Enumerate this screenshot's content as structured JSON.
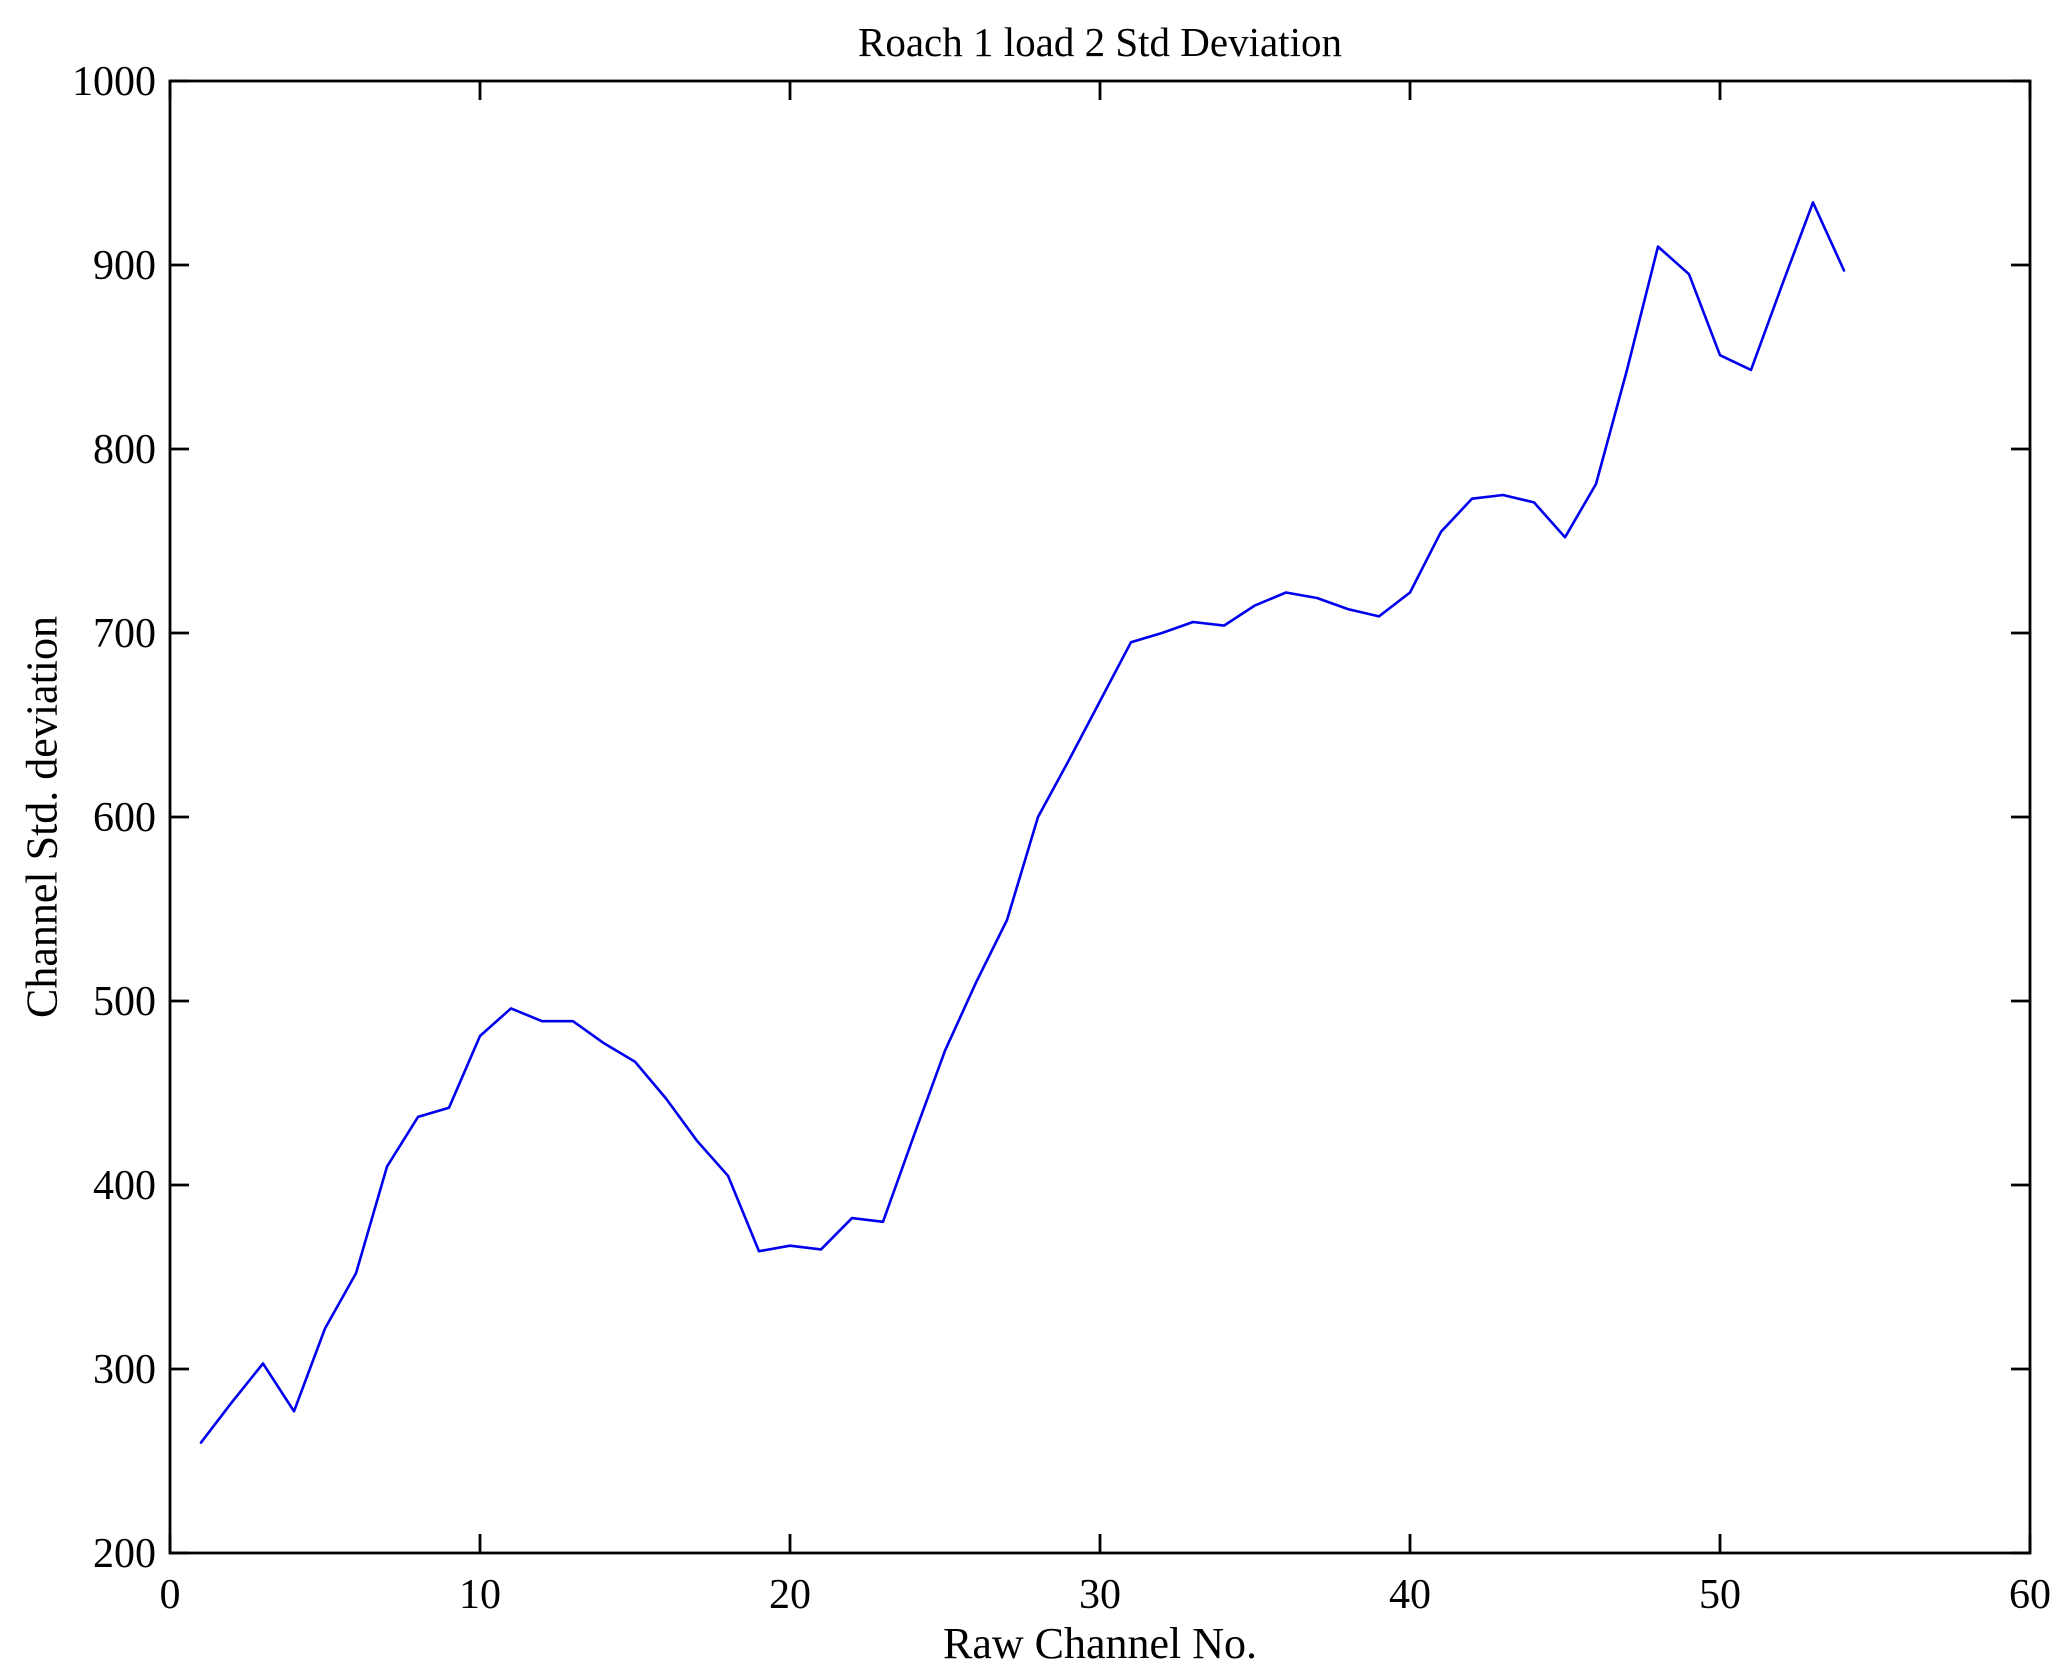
{
  "chart_data": {
    "type": "line",
    "title": "Roach 1 load 2 Std Deviation",
    "xlabel": "Raw Channel No.",
    "ylabel": "Channel Std. deviation",
    "xlim": [
      0,
      60
    ],
    "ylim": [
      200,
      1000
    ],
    "x_ticks": [
      0,
      10,
      20,
      30,
      40,
      50,
      60
    ],
    "y_ticks": [
      200,
      300,
      400,
      500,
      600,
      700,
      800,
      900,
      1000
    ],
    "grid": false,
    "legend": "none",
    "line_color": "#0000ee",
    "axis_color": "#000000",
    "background_color": "#ffffff",
    "series_name": "Channel Std. deviation vs Raw Channel No.",
    "x": [
      1,
      2,
      3,
      4,
      5,
      6,
      7,
      8,
      9,
      10,
      11,
      12,
      13,
      14,
      15,
      16,
      17,
      18,
      19,
      20,
      21,
      22,
      23,
      24,
      25,
      26,
      27,
      28,
      29,
      30,
      31,
      32,
      33,
      34,
      35,
      36,
      37,
      38,
      39,
      40,
      41,
      42,
      43,
      44,
      45,
      46,
      47,
      48,
      49,
      50,
      51,
      52,
      53,
      54
    ],
    "y": [
      260,
      282,
      303,
      277,
      322,
      352,
      410,
      437,
      442,
      481,
      496,
      489,
      489,
      477,
      467,
      447,
      424,
      405,
      364,
      367,
      365,
      382,
      380,
      427,
      473,
      510,
      544,
      600,
      631,
      663,
      695,
      700,
      706,
      704,
      715,
      722,
      719,
      713,
      709,
      722,
      755,
      773,
      775,
      771,
      752,
      781,
      843,
      910,
      895,
      851,
      843,
      889,
      934,
      897
    ]
  }
}
